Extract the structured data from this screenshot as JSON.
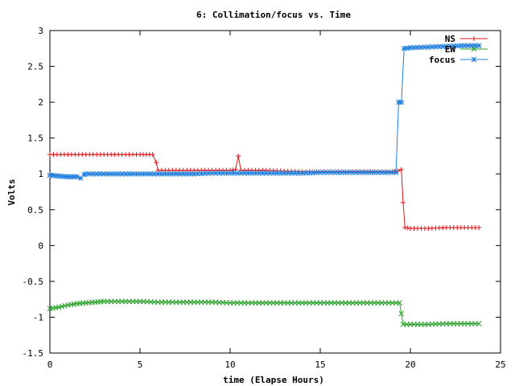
{
  "chart_data": {
    "type": "line",
    "title": "6: Collimation/focus vs. Time",
    "xlabel": "time (Elapse Hours)",
    "ylabel": "Volts",
    "xlim": [
      0,
      25
    ],
    "ylim": [
      -1.5,
      3
    ],
    "xticks": [
      0,
      5,
      10,
      15,
      20,
      25
    ],
    "yticks": [
      -1.5,
      -1,
      -0.5,
      0,
      0.5,
      1,
      1.5,
      2,
      2.5,
      3
    ],
    "xtick_labels": [
      "0",
      "5",
      "10",
      "15",
      "20",
      "25"
    ],
    "ytick_labels": [
      "-1.5",
      "-1",
      "-0.5",
      "0",
      "0.5",
      "1",
      "1.5",
      "2",
      "2.5",
      "3"
    ],
    "grid": false,
    "legend_position": "top-right",
    "series": [
      {
        "name": "NS",
        "color": "#e0161b",
        "marker": "plus",
        "points": [
          [
            0,
            1.27
          ],
          [
            1,
            1.27
          ],
          [
            2,
            1.27
          ],
          [
            3,
            1.27
          ],
          [
            4,
            1.27
          ],
          [
            5,
            1.27
          ],
          [
            5.7,
            1.27
          ],
          [
            5.9,
            1.16
          ],
          [
            6.0,
            1.05
          ],
          [
            7,
            1.05
          ],
          [
            8,
            1.05
          ],
          [
            9,
            1.05
          ],
          [
            10,
            1.05
          ],
          [
            10.3,
            1.06
          ],
          [
            10.45,
            1.25
          ],
          [
            10.6,
            1.05
          ],
          [
            11,
            1.05
          ],
          [
            12,
            1.05
          ],
          [
            13,
            1.04
          ],
          [
            14,
            1.03
          ],
          [
            15,
            1.03
          ],
          [
            16,
            1.03
          ],
          [
            17,
            1.03
          ],
          [
            18,
            1.03
          ],
          [
            19,
            1.03
          ],
          [
            19.3,
            1.04
          ],
          [
            19.5,
            1.06
          ],
          [
            19.6,
            0.6
          ],
          [
            19.7,
            0.25
          ],
          [
            20,
            0.24
          ],
          [
            21,
            0.24
          ],
          [
            22,
            0.25
          ],
          [
            23,
            0.25
          ],
          [
            23.8,
            0.25
          ]
        ]
      },
      {
        "name": "EW",
        "color": "#2aa02b",
        "marker": "cross",
        "points": [
          [
            0,
            -0.88
          ],
          [
            0.5,
            -0.86
          ],
          [
            1,
            -0.83
          ],
          [
            1.5,
            -0.81
          ],
          [
            2,
            -0.8
          ],
          [
            2.5,
            -0.79
          ],
          [
            3,
            -0.78
          ],
          [
            4,
            -0.78
          ],
          [
            5,
            -0.78
          ],
          [
            6,
            -0.79
          ],
          [
            7,
            -0.79
          ],
          [
            8,
            -0.79
          ],
          [
            9,
            -0.79
          ],
          [
            10,
            -0.8
          ],
          [
            11,
            -0.8
          ],
          [
            12,
            -0.8
          ],
          [
            13,
            -0.8
          ],
          [
            14,
            -0.8
          ],
          [
            15,
            -0.8
          ],
          [
            16,
            -0.8
          ],
          [
            17,
            -0.8
          ],
          [
            18,
            -0.8
          ],
          [
            19,
            -0.8
          ],
          [
            19.4,
            -0.8
          ],
          [
            19.5,
            -0.95
          ],
          [
            19.6,
            -1.1
          ],
          [
            20,
            -1.1
          ],
          [
            21,
            -1.1
          ],
          [
            22,
            -1.09
          ],
          [
            23,
            -1.09
          ],
          [
            23.8,
            -1.09
          ]
        ]
      },
      {
        "name": "focus",
        "color": "#1f7fdf",
        "marker": "star",
        "points": [
          [
            0,
            0.98
          ],
          [
            0.5,
            0.97
          ],
          [
            1,
            0.96
          ],
          [
            1.5,
            0.96
          ],
          [
            1.7,
            0.94
          ],
          [
            1.9,
            0.99
          ],
          [
            2,
            1.0
          ],
          [
            3,
            1.0
          ],
          [
            4,
            1.0
          ],
          [
            5,
            1.0
          ],
          [
            6,
            1.0
          ],
          [
            7,
            1.0
          ],
          [
            8,
            1.0
          ],
          [
            9,
            1.01
          ],
          [
            10,
            1.01
          ],
          [
            11,
            1.01
          ],
          [
            12,
            1.01
          ],
          [
            13,
            1.01
          ],
          [
            14,
            1.01
          ],
          [
            15,
            1.02
          ],
          [
            16,
            1.02
          ],
          [
            17,
            1.02
          ],
          [
            18,
            1.02
          ],
          [
            19,
            1.02
          ],
          [
            19.2,
            1.02
          ],
          [
            19.35,
            2.0
          ],
          [
            19.5,
            2.0
          ],
          [
            19.65,
            2.75
          ],
          [
            20,
            2.76
          ],
          [
            21,
            2.77
          ],
          [
            22,
            2.78
          ],
          [
            23,
            2.79
          ],
          [
            23.8,
            2.79
          ]
        ]
      }
    ]
  }
}
